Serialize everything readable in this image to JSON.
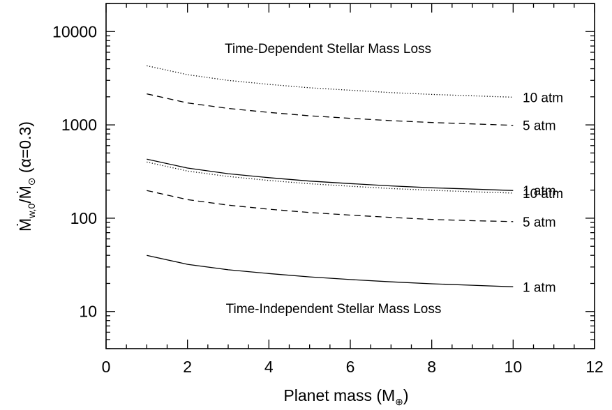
{
  "chart_data": {
    "type": "line",
    "title": "",
    "xlabel_parts": [
      "Planet mass (M",
      "⊕",
      ")"
    ],
    "ylabel_parts": [
      "Ṁ",
      "w,0",
      "/Ṁ",
      "⊙",
      " (α=0.3)"
    ],
    "x_range": [
      0,
      12
    ],
    "y_range": [
      4,
      20000
    ],
    "y_scale": "log",
    "x_ticks": [
      0,
      2,
      4,
      6,
      8,
      10,
      12
    ],
    "x_tick_labels": [
      "0",
      "2",
      "4",
      "6",
      "8",
      "10",
      "12"
    ],
    "y_ticks": [
      10,
      100,
      1000,
      10000
    ],
    "y_tick_labels": [
      "10",
      "100",
      "1000",
      "10000"
    ],
    "grid": false,
    "annotations": {
      "top": "Time-Dependent Stellar Mass Loss",
      "bottom": "Time-Independent Stellar Mass Loss"
    },
    "series": [
      {
        "label": "10 atm",
        "style": "dotted",
        "x": [
          1,
          2,
          3,
          4,
          5,
          6,
          7,
          8,
          9,
          10
        ],
        "y": [
          4300,
          3450,
          3000,
          2720,
          2500,
          2350,
          2220,
          2120,
          2050,
          1980
        ]
      },
      {
        "label": "5 atm",
        "style": "dashed",
        "x": [
          1,
          2,
          3,
          4,
          5,
          6,
          7,
          8,
          9,
          10
        ],
        "y": [
          2150,
          1720,
          1500,
          1360,
          1250,
          1175,
          1110,
          1060,
          1025,
          990
        ]
      },
      {
        "label": "1 atm",
        "style": "solid",
        "x": [
          1,
          2,
          3,
          4,
          5,
          6,
          7,
          8,
          9,
          10
        ],
        "y": [
          430,
          345,
          300,
          272,
          250,
          235,
          222,
          212,
          205,
          198
        ]
      },
      {
        "label": "10 atm",
        "style": "dotted",
        "x": [
          1,
          2,
          3,
          4,
          5,
          6,
          7,
          8,
          9,
          10
        ],
        "y": [
          400,
          320,
          280,
          254,
          234,
          220,
          208,
          199,
          192,
          186
        ]
      },
      {
        "label": "5 atm",
        "style": "dashed",
        "x": [
          1,
          2,
          3,
          4,
          5,
          6,
          7,
          8,
          9,
          10
        ],
        "y": [
          198,
          158,
          138,
          125,
          115,
          108,
          102,
          97,
          94,
          92
        ]
      },
      {
        "label": "1 atm",
        "style": "solid",
        "x": [
          1,
          2,
          3,
          4,
          5,
          6,
          7,
          8,
          9,
          10
        ],
        "y": [
          40,
          32,
          28,
          25.5,
          23.5,
          22,
          20.8,
          19.8,
          19.1,
          18.4
        ]
      }
    ]
  }
}
